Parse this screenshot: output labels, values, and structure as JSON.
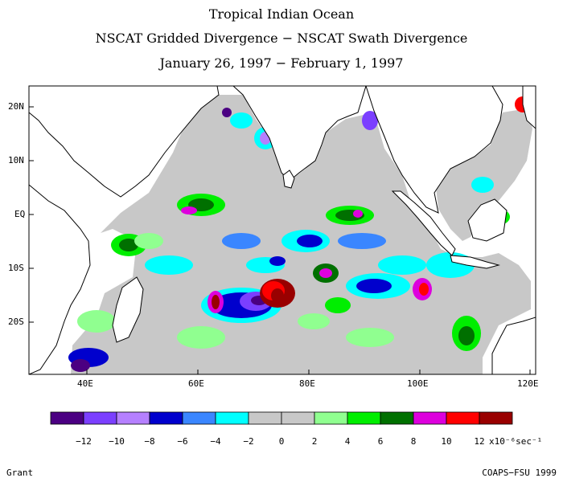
{
  "header": {
    "title_line1": "Tropical Indian Ocean",
    "title_line2": "NSCAT Gridded Divergence − NSCAT Swath Divergence",
    "title_line3": "January 26, 1997 − February 1, 1997"
  },
  "map": {
    "lat_labels": [
      "20N",
      "10N",
      "EQ",
      "10S",
      "20S"
    ],
    "lon_labels": [
      "40E",
      "60E",
      "80E",
      "100E",
      "120E"
    ],
    "land_color": "#ffffff",
    "coastline_color": "#000000"
  },
  "colorbar": {
    "colors": [
      "#4b0082",
      "#7b3fff",
      "#b580ff",
      "#0000cd",
      "#3a86ff",
      "#00ffff",
      "#c8c8c8",
      "#c8c8c8",
      "#90ff90",
      "#00ee00",
      "#007000",
      "#dd00dd",
      "#ff0000",
      "#990000"
    ],
    "tick_labels": [
      "−12",
      "−10",
      "−8",
      "−6",
      "−4",
      "−2",
      "0",
      "2",
      "4",
      "6",
      "8",
      "10",
      "12"
    ],
    "units": "x10⁻⁶sec⁻¹"
  },
  "footer": {
    "left": "Grant",
    "right": "COAPS−FSU 1999"
  }
}
